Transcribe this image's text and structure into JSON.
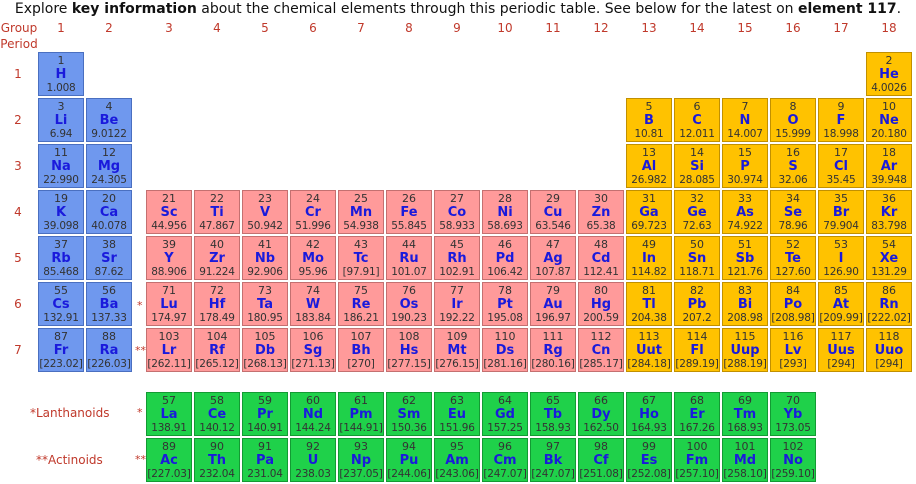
{
  "intro": {
    "part1": "Explore ",
    "key": "key information",
    "part2": " about the chemical elements through this periodic table. See below for the latest on ",
    "link": "element 117",
    "part3": "."
  },
  "headers": {
    "group": "Group",
    "period": "Period"
  },
  "groups": [
    "1",
    "2",
    "3",
    "4",
    "5",
    "6",
    "7",
    "8",
    "9",
    "10",
    "11",
    "12",
    "13",
    "14",
    "15",
    "16",
    "17",
    "18"
  ],
  "periods": [
    "1",
    "2",
    "3",
    "4",
    "5",
    "6",
    "7"
  ],
  "markers": {
    "lan": "*",
    "act": "**"
  },
  "series_labels": {
    "lanthanoids": "*Lanthanoids",
    "actinoids": "**Actinoids"
  },
  "colors": {
    "s_block": "#6f98ee",
    "p_block": "#ffc200",
    "d_block": "#ff9a9a",
    "f_block": "#1fd14a",
    "header_text": "#c0392b",
    "symbol_text": "#1a1adc"
  },
  "elements": [
    {
      "n": "1",
      "s": "H",
      "m": "1.008",
      "g": 1,
      "p": 1,
      "c": "blue"
    },
    {
      "n": "2",
      "s": "He",
      "m": "4.0026",
      "g": 18,
      "p": 1,
      "c": "yellow"
    },
    {
      "n": "3",
      "s": "Li",
      "m": "6.94",
      "g": 1,
      "p": 2,
      "c": "blue"
    },
    {
      "n": "4",
      "s": "Be",
      "m": "9.0122",
      "g": 2,
      "p": 2,
      "c": "blue"
    },
    {
      "n": "5",
      "s": "B",
      "m": "10.81",
      "g": 13,
      "p": 2,
      "c": "yellow"
    },
    {
      "n": "6",
      "s": "C",
      "m": "12.011",
      "g": 14,
      "p": 2,
      "c": "yellow"
    },
    {
      "n": "7",
      "s": "N",
      "m": "14.007",
      "g": 15,
      "p": 2,
      "c": "yellow"
    },
    {
      "n": "8",
      "s": "O",
      "m": "15.999",
      "g": 16,
      "p": 2,
      "c": "yellow"
    },
    {
      "n": "9",
      "s": "F",
      "m": "18.998",
      "g": 17,
      "p": 2,
      "c": "yellow"
    },
    {
      "n": "10",
      "s": "Ne",
      "m": "20.180",
      "g": 18,
      "p": 2,
      "c": "yellow"
    },
    {
      "n": "11",
      "s": "Na",
      "m": "22.990",
      "g": 1,
      "p": 3,
      "c": "blue"
    },
    {
      "n": "12",
      "s": "Mg",
      "m": "24.305",
      "g": 2,
      "p": 3,
      "c": "blue"
    },
    {
      "n": "13",
      "s": "Al",
      "m": "26.982",
      "g": 13,
      "p": 3,
      "c": "yellow"
    },
    {
      "n": "14",
      "s": "Si",
      "m": "28.085",
      "g": 14,
      "p": 3,
      "c": "yellow"
    },
    {
      "n": "15",
      "s": "P",
      "m": "30.974",
      "g": 15,
      "p": 3,
      "c": "yellow"
    },
    {
      "n": "16",
      "s": "S",
      "m": "32.06",
      "g": 16,
      "p": 3,
      "c": "yellow"
    },
    {
      "n": "17",
      "s": "Cl",
      "m": "35.45",
      "g": 17,
      "p": 3,
      "c": "yellow"
    },
    {
      "n": "18",
      "s": "Ar",
      "m": "39.948",
      "g": 18,
      "p": 3,
      "c": "yellow"
    },
    {
      "n": "19",
      "s": "K",
      "m": "39.098",
      "g": 1,
      "p": 4,
      "c": "blue"
    },
    {
      "n": "20",
      "s": "Ca",
      "m": "40.078",
      "g": 2,
      "p": 4,
      "c": "blue"
    },
    {
      "n": "21",
      "s": "Sc",
      "m": "44.956",
      "g": 3,
      "p": 4,
      "c": "pink"
    },
    {
      "n": "22",
      "s": "Ti",
      "m": "47.867",
      "g": 4,
      "p": 4,
      "c": "pink"
    },
    {
      "n": "23",
      "s": "V",
      "m": "50.942",
      "g": 5,
      "p": 4,
      "c": "pink"
    },
    {
      "n": "24",
      "s": "Cr",
      "m": "51.996",
      "g": 6,
      "p": 4,
      "c": "pink"
    },
    {
      "n": "25",
      "s": "Mn",
      "m": "54.938",
      "g": 7,
      "p": 4,
      "c": "pink"
    },
    {
      "n": "26",
      "s": "Fe",
      "m": "55.845",
      "g": 8,
      "p": 4,
      "c": "pink"
    },
    {
      "n": "27",
      "s": "Co",
      "m": "58.933",
      "g": 9,
      "p": 4,
      "c": "pink"
    },
    {
      "n": "28",
      "s": "Ni",
      "m": "58.693",
      "g": 10,
      "p": 4,
      "c": "pink"
    },
    {
      "n": "29",
      "s": "Cu",
      "m": "63.546",
      "g": 11,
      "p": 4,
      "c": "pink"
    },
    {
      "n": "30",
      "s": "Zn",
      "m": "65.38",
      "g": 12,
      "p": 4,
      "c": "pink"
    },
    {
      "n": "31",
      "s": "Ga",
      "m": "69.723",
      "g": 13,
      "p": 4,
      "c": "yellow"
    },
    {
      "n": "32",
      "s": "Ge",
      "m": "72.63",
      "g": 14,
      "p": 4,
      "c": "yellow"
    },
    {
      "n": "33",
      "s": "As",
      "m": "74.922",
      "g": 15,
      "p": 4,
      "c": "yellow"
    },
    {
      "n": "34",
      "s": "Se",
      "m": "78.96",
      "g": 16,
      "p": 4,
      "c": "yellow"
    },
    {
      "n": "35",
      "s": "Br",
      "m": "79.904",
      "g": 17,
      "p": 4,
      "c": "yellow"
    },
    {
      "n": "36",
      "s": "Kr",
      "m": "83.798",
      "g": 18,
      "p": 4,
      "c": "yellow"
    },
    {
      "n": "37",
      "s": "Rb",
      "m": "85.468",
      "g": 1,
      "p": 5,
      "c": "blue"
    },
    {
      "n": "38",
      "s": "Sr",
      "m": "87.62",
      "g": 2,
      "p": 5,
      "c": "blue"
    },
    {
      "n": "39",
      "s": "Y",
      "m": "88.906",
      "g": 3,
      "p": 5,
      "c": "pink"
    },
    {
      "n": "40",
      "s": "Zr",
      "m": "91.224",
      "g": 4,
      "p": 5,
      "c": "pink"
    },
    {
      "n": "41",
      "s": "Nb",
      "m": "92.906",
      "g": 5,
      "p": 5,
      "c": "pink"
    },
    {
      "n": "42",
      "s": "Mo",
      "m": "95.96",
      "g": 6,
      "p": 5,
      "c": "pink"
    },
    {
      "n": "43",
      "s": "Tc",
      "m": "[97.91]",
      "g": 7,
      "p": 5,
      "c": "pink"
    },
    {
      "n": "44",
      "s": "Ru",
      "m": "101.07",
      "g": 8,
      "p": 5,
      "c": "pink"
    },
    {
      "n": "45",
      "s": "Rh",
      "m": "102.91",
      "g": 9,
      "p": 5,
      "c": "pink"
    },
    {
      "n": "46",
      "s": "Pd",
      "m": "106.42",
      "g": 10,
      "p": 5,
      "c": "pink"
    },
    {
      "n": "47",
      "s": "Ag",
      "m": "107.87",
      "g": 11,
      "p": 5,
      "c": "pink"
    },
    {
      "n": "48",
      "s": "Cd",
      "m": "112.41",
      "g": 12,
      "p": 5,
      "c": "pink"
    },
    {
      "n": "49",
      "s": "In",
      "m": "114.82",
      "g": 13,
      "p": 5,
      "c": "yellow"
    },
    {
      "n": "50",
      "s": "Sn",
      "m": "118.71",
      "g": 14,
      "p": 5,
      "c": "yellow"
    },
    {
      "n": "51",
      "s": "Sb",
      "m": "121.76",
      "g": 15,
      "p": 5,
      "c": "yellow"
    },
    {
      "n": "52",
      "s": "Te",
      "m": "127.60",
      "g": 16,
      "p": 5,
      "c": "yellow"
    },
    {
      "n": "53",
      "s": "I",
      "m": "126.90",
      "g": 17,
      "p": 5,
      "c": "yellow"
    },
    {
      "n": "54",
      "s": "Xe",
      "m": "131.29",
      "g": 18,
      "p": 5,
      "c": "yellow"
    },
    {
      "n": "55",
      "s": "Cs",
      "m": "132.91",
      "g": 1,
      "p": 6,
      "c": "blue"
    },
    {
      "n": "56",
      "s": "Ba",
      "m": "137.33",
      "g": 2,
      "p": 6,
      "c": "blue"
    },
    {
      "n": "71",
      "s": "Lu",
      "m": "174.97",
      "g": 3,
      "p": 6,
      "c": "pink"
    },
    {
      "n": "72",
      "s": "Hf",
      "m": "178.49",
      "g": 4,
      "p": 6,
      "c": "pink"
    },
    {
      "n": "73",
      "s": "Ta",
      "m": "180.95",
      "g": 5,
      "p": 6,
      "c": "pink"
    },
    {
      "n": "74",
      "s": "W",
      "m": "183.84",
      "g": 6,
      "p": 6,
      "c": "pink"
    },
    {
      "n": "75",
      "s": "Re",
      "m": "186.21",
      "g": 7,
      "p": 6,
      "c": "pink"
    },
    {
      "n": "76",
      "s": "Os",
      "m": "190.23",
      "g": 8,
      "p": 6,
      "c": "pink"
    },
    {
      "n": "77",
      "s": "Ir",
      "m": "192.22",
      "g": 9,
      "p": 6,
      "c": "pink"
    },
    {
      "n": "78",
      "s": "Pt",
      "m": "195.08",
      "g": 10,
      "p": 6,
      "c": "pink"
    },
    {
      "n": "79",
      "s": "Au",
      "m": "196.97",
      "g": 11,
      "p": 6,
      "c": "pink"
    },
    {
      "n": "80",
      "s": "Hg",
      "m": "200.59",
      "g": 12,
      "p": 6,
      "c": "pink"
    },
    {
      "n": "81",
      "s": "Tl",
      "m": "204.38",
      "g": 13,
      "p": 6,
      "c": "yellow"
    },
    {
      "n": "82",
      "s": "Pb",
      "m": "207.2",
      "g": 14,
      "p": 6,
      "c": "yellow"
    },
    {
      "n": "83",
      "s": "Bi",
      "m": "208.98",
      "g": 15,
      "p": 6,
      "c": "yellow"
    },
    {
      "n": "84",
      "s": "Po",
      "m": "[208.98]",
      "g": 16,
      "p": 6,
      "c": "yellow"
    },
    {
      "n": "85",
      "s": "At",
      "m": "[209.99]",
      "g": 17,
      "p": 6,
      "c": "yellow"
    },
    {
      "n": "86",
      "s": "Rn",
      "m": "[222.02]",
      "g": 18,
      "p": 6,
      "c": "yellow"
    },
    {
      "n": "87",
      "s": "Fr",
      "m": "[223.02]",
      "g": 1,
      "p": 7,
      "c": "blue"
    },
    {
      "n": "88",
      "s": "Ra",
      "m": "[226.03]",
      "g": 2,
      "p": 7,
      "c": "blue"
    },
    {
      "n": "103",
      "s": "Lr",
      "m": "[262.11]",
      "g": 3,
      "p": 7,
      "c": "pink"
    },
    {
      "n": "104",
      "s": "Rf",
      "m": "[265.12]",
      "g": 4,
      "p": 7,
      "c": "pink"
    },
    {
      "n": "105",
      "s": "Db",
      "m": "[268.13]",
      "g": 5,
      "p": 7,
      "c": "pink"
    },
    {
      "n": "106",
      "s": "Sg",
      "m": "[271.13]",
      "g": 6,
      "p": 7,
      "c": "pink"
    },
    {
      "n": "107",
      "s": "Bh",
      "m": "[270]",
      "g": 7,
      "p": 7,
      "c": "pink"
    },
    {
      "n": "108",
      "s": "Hs",
      "m": "[277.15]",
      "g": 8,
      "p": 7,
      "c": "pink"
    },
    {
      "n": "109",
      "s": "Mt",
      "m": "[276.15]",
      "g": 9,
      "p": 7,
      "c": "pink"
    },
    {
      "n": "110",
      "s": "Ds",
      "m": "[281.16]",
      "g": 10,
      "p": 7,
      "c": "pink"
    },
    {
      "n": "111",
      "s": "Rg",
      "m": "[280.16]",
      "g": 11,
      "p": 7,
      "c": "pink"
    },
    {
      "n": "112",
      "s": "Cn",
      "m": "[285.17]",
      "g": 12,
      "p": 7,
      "c": "pink"
    },
    {
      "n": "113",
      "s": "Uut",
      "m": "[284.18]",
      "g": 13,
      "p": 7,
      "c": "yellow"
    },
    {
      "n": "114",
      "s": "Fl",
      "m": "[289.19]",
      "g": 14,
      "p": 7,
      "c": "yellow"
    },
    {
      "n": "115",
      "s": "Uup",
      "m": "[288.19]",
      "g": 15,
      "p": 7,
      "c": "yellow"
    },
    {
      "n": "116",
      "s": "Lv",
      "m": "[293]",
      "g": 16,
      "p": 7,
      "c": "yellow"
    },
    {
      "n": "117",
      "s": "Uus",
      "m": "[294]",
      "g": 17,
      "p": 7,
      "c": "yellow"
    },
    {
      "n": "118",
      "s": "Uuo",
      "m": "[294]",
      "g": 18,
      "p": 7,
      "c": "yellow"
    }
  ],
  "lanthanoids": [
    {
      "n": "57",
      "s": "La",
      "m": "138.91"
    },
    {
      "n": "58",
      "s": "Ce",
      "m": "140.12"
    },
    {
      "n": "59",
      "s": "Pr",
      "m": "140.91"
    },
    {
      "n": "60",
      "s": "Nd",
      "m": "144.24"
    },
    {
      "n": "61",
      "s": "Pm",
      "m": "[144.91]"
    },
    {
      "n": "62",
      "s": "Sm",
      "m": "150.36"
    },
    {
      "n": "63",
      "s": "Eu",
      "m": "151.96"
    },
    {
      "n": "64",
      "s": "Gd",
      "m": "157.25"
    },
    {
      "n": "65",
      "s": "Tb",
      "m": "158.93"
    },
    {
      "n": "66",
      "s": "Dy",
      "m": "162.50"
    },
    {
      "n": "67",
      "s": "Ho",
      "m": "164.93"
    },
    {
      "n": "68",
      "s": "Er",
      "m": "167.26"
    },
    {
      "n": "69",
      "s": "Tm",
      "m": "168.93"
    },
    {
      "n": "70",
      "s": "Yb",
      "m": "173.05"
    }
  ],
  "actinoids": [
    {
      "n": "89",
      "s": "Ac",
      "m": "[227.03]"
    },
    {
      "n": "90",
      "s": "Th",
      "m": "232.04"
    },
    {
      "n": "91",
      "s": "Pa",
      "m": "231.04"
    },
    {
      "n": "92",
      "s": "U",
      "m": "238.03"
    },
    {
      "n": "93",
      "s": "Np",
      "m": "[237.05]"
    },
    {
      "n": "94",
      "s": "Pu",
      "m": "[244.06]"
    },
    {
      "n": "95",
      "s": "Am",
      "m": "[243.06]"
    },
    {
      "n": "96",
      "s": "Cm",
      "m": "[247.07]"
    },
    {
      "n": "97",
      "s": "Bk",
      "m": "[247.07]"
    },
    {
      "n": "98",
      "s": "Cf",
      "m": "[251.08]"
    },
    {
      "n": "99",
      "s": "Es",
      "m": "[252.08]"
    },
    {
      "n": "100",
      "s": "Fm",
      "m": "[257.10]"
    },
    {
      "n": "101",
      "s": "Md",
      "m": "[258.10]"
    },
    {
      "n": "102",
      "s": "No",
      "m": "[259.10]"
    }
  ]
}
